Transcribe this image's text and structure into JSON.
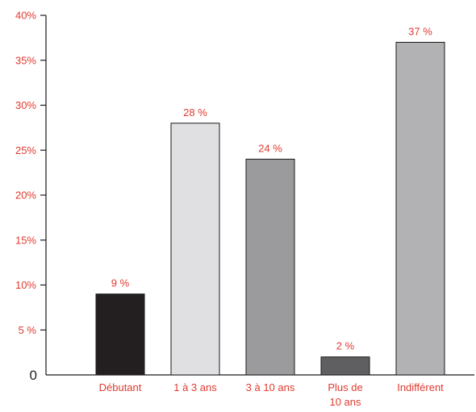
{
  "chart_data": {
    "type": "bar",
    "categories": [
      [
        "Débutant"
      ],
      [
        "1 à 3 ans"
      ],
      [
        "3 à 10 ans"
      ],
      [
        "Plus de",
        "10 ans"
      ],
      [
        "Indifférent"
      ]
    ],
    "values": [
      9,
      28,
      24,
      2,
      37
    ],
    "value_labels": [
      "9 %",
      "28 %",
      "24 %",
      "2 %",
      "37 %"
    ],
    "bar_colors": [
      "#231f20",
      "#e0e0e2",
      "#9b9b9e",
      "#5f5f62",
      "#b2b2b4"
    ],
    "ylim": [
      0,
      40
    ],
    "yticks": [
      0,
      5,
      10,
      15,
      20,
      25,
      30,
      35,
      40
    ],
    "ytick_labels": [
      "0",
      "5 %",
      "10%",
      "15%",
      "20%",
      "25%",
      "30%",
      "35%",
      "40%"
    ],
    "grid": false,
    "label_color": "#e03a2f",
    "axis_color": "#1a1a1a"
  }
}
